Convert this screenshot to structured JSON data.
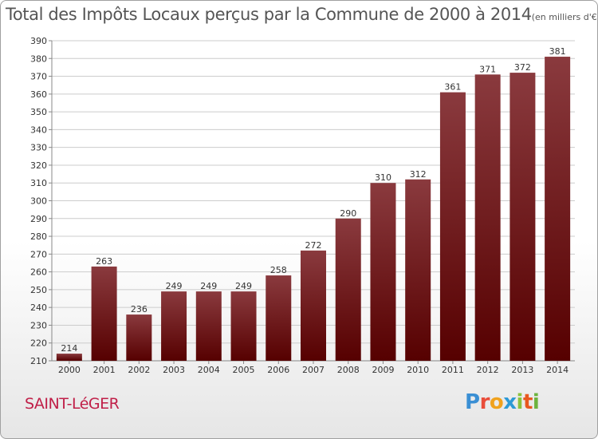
{
  "title": "Total des Impôts Locaux perçus par la Commune de 2000 à 2014",
  "subtitle": "(en milliers d'€)",
  "commune": "SAINT-LéGER",
  "logo": {
    "p": "P",
    "r": "r",
    "o": "o",
    "x": "x",
    "i1": "i",
    "t": "t",
    "i2": "i"
  },
  "colors": {
    "bar_top": "#8a3a3e",
    "bar_bottom": "#560000",
    "grid": "#cccccc",
    "commune": "#c01f48"
  },
  "chart_data": {
    "type": "bar",
    "title": "Total des Impôts Locaux perçus par la Commune de 2000 à 2014",
    "unit": "(en milliers d'€)",
    "categories": [
      "2000",
      "2001",
      "2002",
      "2003",
      "2004",
      "2005",
      "2006",
      "2007",
      "2008",
      "2009",
      "2010",
      "2011",
      "2012",
      "2013",
      "2014"
    ],
    "values": [
      214,
      263,
      236,
      249,
      249,
      249,
      258,
      272,
      290,
      310,
      312,
      361,
      371,
      372,
      381
    ],
    "ylim": [
      210,
      390
    ],
    "yticks": [
      210,
      220,
      230,
      240,
      250,
      260,
      270,
      280,
      290,
      300,
      310,
      320,
      330,
      340,
      350,
      360,
      370,
      380,
      390
    ],
    "grid": true
  }
}
